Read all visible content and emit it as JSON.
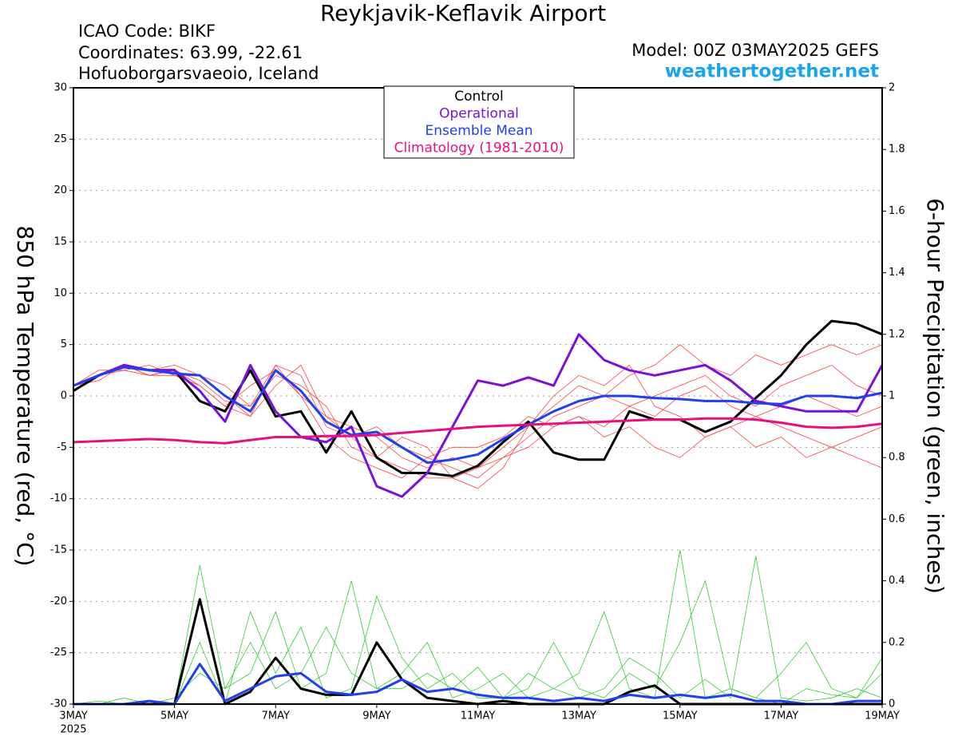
{
  "chart_data": {
    "type": "line",
    "title": "Reykjavik-Keflavik Airport",
    "icao": "ICAO Code: BIKF",
    "coordinates": "Coordinates: 63.99, -22.61",
    "location": "Hofuoborgarsvaeoio, Iceland",
    "model": "Model: 00Z 03MAY2025 GEFS",
    "site": "weathertogether.net",
    "ylabel": "850 hPa Temperature (red, °C)",
    "y2label": "6-hour Precipitation (green, inches)",
    "x_year_label": "2025",
    "xlim": [
      0,
      16
    ],
    "xticks": [
      {
        "value": 0,
        "label": "3MAY"
      },
      {
        "value": 2,
        "label": "5MAY"
      },
      {
        "value": 4,
        "label": "7MAY"
      },
      {
        "value": 6,
        "label": "9MAY"
      },
      {
        "value": 8,
        "label": "11MAY"
      },
      {
        "value": 10,
        "label": "13MAY"
      },
      {
        "value": 12,
        "label": "15MAY"
      },
      {
        "value": 14,
        "label": "17MAY"
      },
      {
        "value": 16,
        "label": "19MAY"
      }
    ],
    "ylim": [
      -30,
      30
    ],
    "yticks": [
      -30,
      -25,
      -20,
      -15,
      -10,
      -5,
      0,
      5,
      10,
      15,
      20,
      25,
      30
    ],
    "y2lim": [
      0,
      2
    ],
    "y2ticks": [
      0,
      0.2,
      0.4,
      0.6,
      0.8,
      1,
      1.2,
      1.4,
      1.6,
      1.8,
      2
    ],
    "grid": true,
    "x": [
      0,
      0.5,
      1,
      1.5,
      2,
      2.5,
      3,
      3.5,
      4,
      4.5,
      5,
      5.5,
      6,
      6.5,
      7,
      7.5,
      8,
      8.5,
      9,
      9.5,
      10,
      10.5,
      11,
      11.5,
      12,
      12.5,
      13,
      13.5,
      14,
      14.5,
      15,
      15.5,
      16
    ],
    "temp_members": {
      "color": "#ff4040",
      "values": [
        [
          1,
          2,
          3,
          2,
          2.5,
          1,
          -1,
          1,
          2.5,
          0,
          -2,
          -4,
          -6,
          -7,
          -8,
          -8,
          -7,
          -5,
          -3,
          -1,
          1,
          0,
          -1,
          -2,
          0,
          1,
          -1,
          -2,
          -3,
          -4,
          -5,
          -6,
          -7
        ],
        [
          1,
          2.5,
          2.5,
          3,
          2,
          2,
          0,
          -2,
          3,
          2,
          -3,
          -4,
          -3,
          -5,
          -6,
          -7,
          -8,
          -6,
          -4,
          -2,
          -1,
          0,
          2,
          3,
          5,
          3,
          2,
          4,
          3,
          4,
          5,
          4,
          5
        ],
        [
          0.5,
          2,
          3,
          2,
          2,
          1,
          -1,
          -2,
          1,
          3,
          -2,
          -3,
          -4,
          -6,
          -7,
          -6,
          -7,
          -6,
          -5,
          -3,
          -2,
          -3,
          -1,
          0,
          1,
          2,
          0,
          -1,
          1,
          2,
          3,
          1,
          0
        ],
        [
          1,
          1.5,
          3,
          2.5,
          3,
          2,
          1,
          -1,
          2,
          1,
          -1,
          -5,
          -6,
          -4,
          -5,
          -8,
          -9,
          -7,
          -3,
          0,
          2,
          1,
          3,
          -1,
          -2,
          -4,
          -3,
          -5,
          -4,
          -6,
          -5,
          -4,
          -3
        ],
        [
          1,
          2,
          2.5,
          2,
          2.5,
          1.5,
          -0.5,
          -1,
          3,
          0,
          -4,
          -6,
          -7,
          -8,
          -6,
          -5,
          -5,
          -4,
          -2,
          -3,
          -2,
          -4,
          -3,
          -5,
          -6,
          -4,
          -3,
          -2,
          -1,
          0,
          -1,
          -2,
          -1
        ]
      ]
    },
    "precip_members": {
      "color": "#33cc33",
      "values": [
        [
          0,
          0,
          0.02,
          0,
          0,
          0.45,
          0.05,
          0.1,
          0.3,
          0.05,
          0.1,
          0.4,
          0.05,
          0.1,
          0.2,
          0.02,
          0.05,
          0.1,
          0.02,
          0.05,
          0.1,
          0.3,
          0.05,
          0.02,
          0.5,
          0.02,
          0.05,
          0.02,
          0,
          0.05,
          0.03,
          0.02,
          0.1
        ],
        [
          0,
          0.01,
          0,
          0.01,
          0,
          0.2,
          0,
          0.3,
          0.1,
          0.25,
          0.02,
          0.05,
          0.35,
          0.15,
          0.05,
          0.1,
          0.02,
          0.02,
          0.1,
          0.05,
          0.02,
          0.05,
          0.15,
          0.1,
          0.02,
          0.08,
          0.02,
          0.48,
          0.02,
          0.01,
          0.02,
          0.05,
          0.02
        ],
        [
          0,
          0,
          0,
          0,
          0.02,
          0.1,
          0.05,
          0.2,
          0.05,
          0.1,
          0.25,
          0.1,
          0.05,
          0.05,
          0.1,
          0.05,
          0.12,
          0.02,
          0.05,
          0.2,
          0.05,
          0.02,
          0.1,
          0.05,
          0.2,
          0.4,
          0.05,
          0.02,
          0.1,
          0.2,
          0.05,
          0.02,
          0.15
        ]
      ]
    },
    "series": [
      {
        "name": "Control",
        "color": "#000000",
        "values": [
          0.5,
          2,
          3,
          2.5,
          2.5,
          -0.5,
          -1.5,
          2.5,
          -2,
          -1.5,
          -5.5,
          -1.5,
          -6,
          -7.5,
          -7.5,
          -7.8,
          -6.8,
          -4.5,
          -2.5,
          -5.5,
          -6.2,
          -6.2,
          -1.5,
          -2.3,
          -2.3,
          -3.5,
          -2.5,
          -0.2,
          2,
          5,
          7.3,
          7,
          6
        ]
      },
      {
        "name": "Operational",
        "color": "#7b10d8",
        "values": [
          1,
          2,
          3,
          2.5,
          2.5,
          0.5,
          -2.5,
          3,
          -1.5,
          -4,
          -4.5,
          -3,
          -8.8,
          -9.8,
          -7.5,
          -3,
          1.5,
          1,
          1.8,
          1,
          6,
          3.5,
          2.5,
          2,
          2.5,
          3,
          1.5,
          -0.5,
          -1,
          -1.5,
          -1.5,
          -1.5,
          3
        ]
      },
      {
        "name": "Ensemble Mean",
        "color": "#2040f0",
        "values": [
          1,
          2,
          2.8,
          2.5,
          2.2,
          2,
          0,
          -1.5,
          2.5,
          0.5,
          -2.5,
          -3.8,
          -3.5,
          -5,
          -6.5,
          -6.2,
          -5.7,
          -4.2,
          -2.8,
          -1.5,
          -0.5,
          0,
          0,
          -0.2,
          -0.3,
          -0.5,
          -0.5,
          -0.7,
          -0.8,
          0,
          0,
          -0.2,
          0.3
        ]
      },
      {
        "name": "Climatology (1981-2010)",
        "color": "#e8107f",
        "values": [
          -4.5,
          -4.4,
          -4.3,
          -4.2,
          -4.3,
          -4.5,
          -4.6,
          -4.3,
          -4,
          -4,
          -3.9,
          -3.9,
          -3.8,
          -3.6,
          -3.4,
          -3.2,
          -3,
          -2.9,
          -2.8,
          -2.7,
          -2.6,
          -2.5,
          -2.4,
          -2.3,
          -2.3,
          -2.2,
          -2.2,
          -2.3,
          -2.6,
          -3,
          -3.1,
          -3,
          -2.7
        ]
      },
      {
        "axis": "y2",
        "color": "#000000",
        "values": [
          0,
          0,
          0,
          0,
          0,
          0.34,
          0,
          0.04,
          0.15,
          0.05,
          0.03,
          0.03,
          0.2,
          0.08,
          0.02,
          0.01,
          0,
          0.01,
          0,
          0,
          0,
          0,
          0.04,
          0.06,
          0,
          0,
          0,
          0,
          0,
          0,
          0,
          0,
          0
        ]
      },
      {
        "axis": "y2",
        "color": "#2040f0",
        "values": [
          0,
          0,
          0,
          0.01,
          0,
          0.13,
          0.01,
          0.05,
          0.09,
          0.1,
          0.04,
          0.03,
          0.04,
          0.08,
          0.04,
          0.05,
          0.03,
          0.02,
          0.02,
          0.01,
          0.02,
          0.01,
          0.03,
          0.02,
          0.03,
          0.02,
          0.03,
          0.01,
          0.01,
          0,
          0,
          0.01,
          0.01
        ]
      }
    ]
  }
}
